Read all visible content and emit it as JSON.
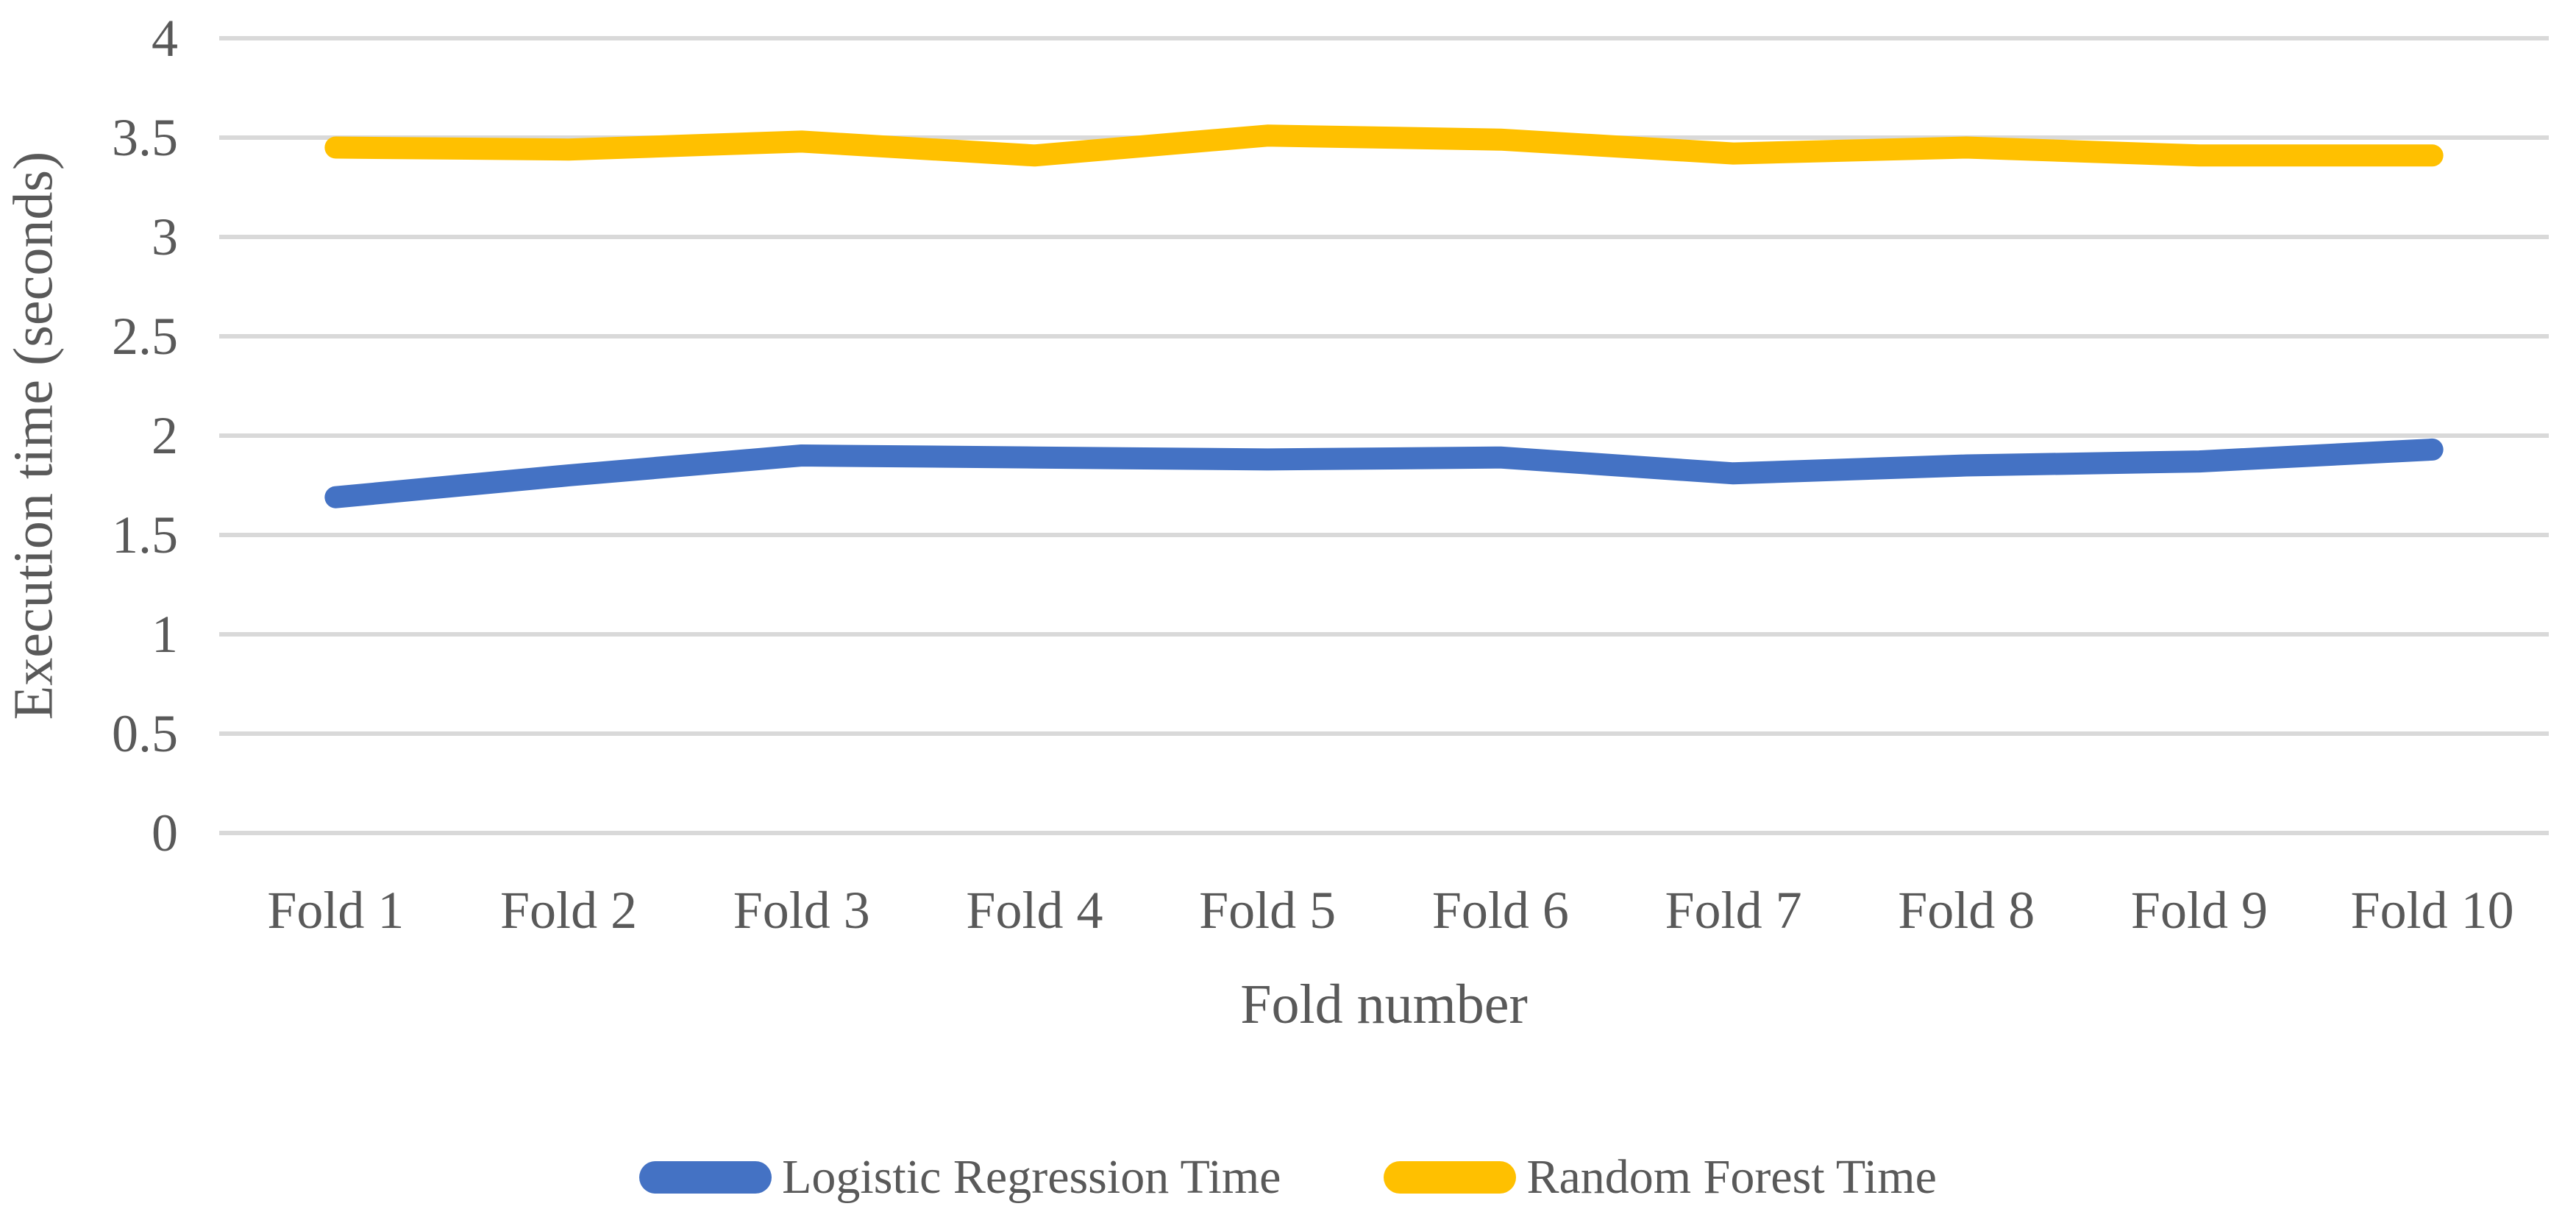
{
  "figure": {
    "background_color": "#ffffff",
    "text_color": "#595959",
    "grid_color": "#d9d9d9"
  },
  "chart_data": {
    "type": "line",
    "title": "",
    "xlabel": "Fold number",
    "ylabel": "Execution time (seconds)",
    "categories": [
      "Fold 1",
      "Fold 2",
      "Fold 3",
      "Fold 4",
      "Fold 5",
      "Fold 6",
      "Fold 7",
      "Fold 8",
      "Fold 9",
      "Fold 10"
    ],
    "series": [
      {
        "name": "Logistic Regression Time",
        "color": "#4472C4",
        "values": [
          1.69,
          1.8,
          1.9,
          1.89,
          1.88,
          1.89,
          1.81,
          1.85,
          1.87,
          1.93
        ]
      },
      {
        "name": "Random Forest Time",
        "color": "#FFC000",
        "values": [
          3.45,
          3.44,
          3.48,
          3.41,
          3.51,
          3.49,
          3.42,
          3.45,
          3.41,
          3.41
        ]
      }
    ],
    "ylim": [
      0,
      4
    ],
    "y_tick_step": 0.5,
    "y_tick_labels": [
      "0",
      "0.5",
      "1",
      "1.5",
      "2",
      "2.5",
      "3",
      "3.5",
      "4"
    ],
    "grid": "horizontal",
    "legend_position": "bottom"
  }
}
